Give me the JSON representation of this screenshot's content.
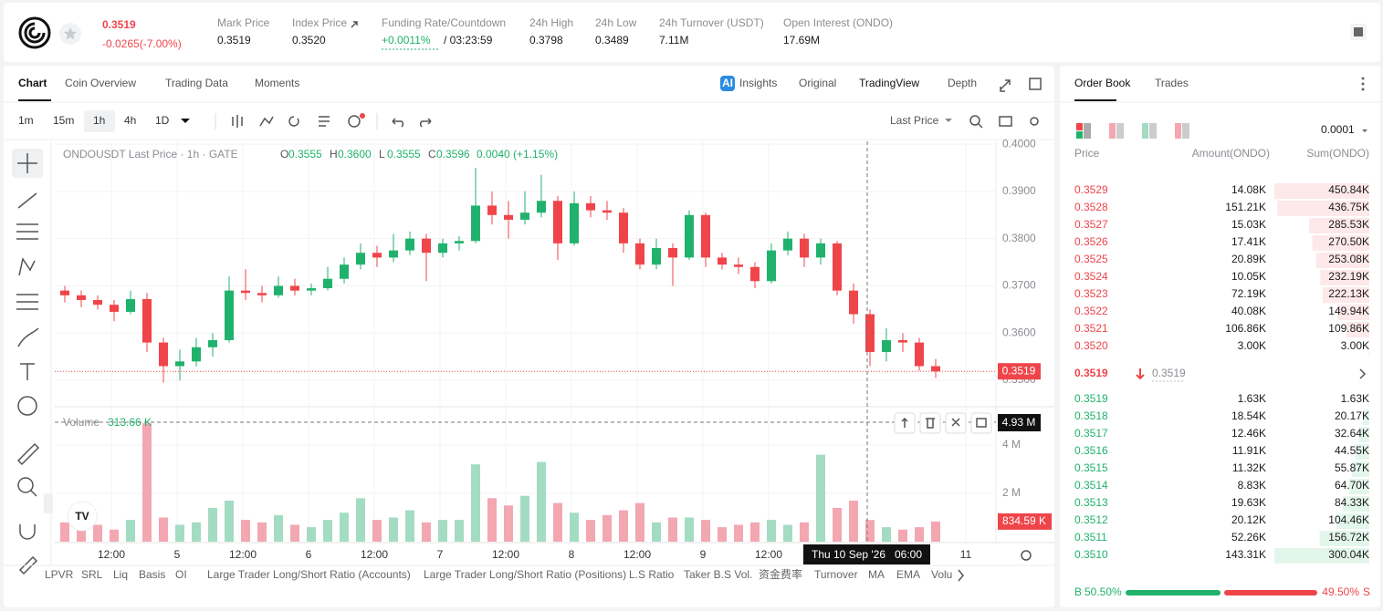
{
  "header": {
    "price": "0.3519",
    "change": "-0.0265(-7.00%)",
    "stats": [
      {
        "label": "Mark Price",
        "value": "0.3519"
      },
      {
        "label": "Index Price",
        "value": "0.3520"
      },
      {
        "label": "Funding Rate/Countdown",
        "value": "+0.0011%",
        "countdown": "/ 03:23:59"
      },
      {
        "label": "24h High",
        "value": "0.3798"
      },
      {
        "label": "24h Low",
        "value": "0.3489"
      },
      {
        "label": "24h Turnover (USDT)",
        "value": "7.11M"
      },
      {
        "label": "Open Interest (ONDO)",
        "value": "17.69M"
      }
    ]
  },
  "tabs": [
    "Chart",
    "Coin Overview",
    "Trading Data",
    "Moments"
  ],
  "view_tabs": [
    "Insights",
    "Original",
    "TradingView",
    "Depth"
  ],
  "intervals": [
    "1m",
    "15m",
    "1h",
    "4h",
    "1D"
  ],
  "price_source": "Last Price",
  "chart_data": {
    "type": "candlestick",
    "legend_title": "ONDOUSDT Last Price · 1h · GATE",
    "ohlc_legend": [
      {
        "key": "O",
        "value": "0.3555"
      },
      {
        "key": "H",
        "value": "0.3600"
      },
      {
        "key": "L",
        "value": "0.3555"
      },
      {
        "key": "C",
        "value": "0.3596"
      }
    ],
    "legend_change": "0.0040 (+1.15%)",
    "colors": {
      "up": "#20b26c",
      "down": "#ef454a",
      "up_volume": "#a3dcc3",
      "down_volume": "#f3a7b1"
    },
    "candles": [
      [
        0.369,
        0.37,
        0.3665,
        0.368
      ],
      [
        0.368,
        0.369,
        0.3655,
        0.367
      ],
      [
        0.367,
        0.368,
        0.365,
        0.366
      ],
      [
        0.366,
        0.367,
        0.3625,
        0.3645
      ],
      [
        0.3645,
        0.369,
        0.364,
        0.3672
      ],
      [
        0.3672,
        0.3685,
        0.356,
        0.358
      ],
      [
        0.358,
        0.359,
        0.3495,
        0.353
      ],
      [
        0.353,
        0.3565,
        0.35,
        0.354
      ],
      [
        0.354,
        0.359,
        0.353,
        0.357
      ],
      [
        0.357,
        0.36,
        0.355,
        0.3585
      ],
      [
        0.3585,
        0.372,
        0.358,
        0.369
      ],
      [
        0.369,
        0.3735,
        0.367,
        0.3685
      ],
      [
        0.3685,
        0.37,
        0.3665,
        0.368
      ],
      [
        0.368,
        0.372,
        0.3675,
        0.37
      ],
      [
        0.37,
        0.3715,
        0.368,
        0.369
      ],
      [
        0.369,
        0.3705,
        0.368,
        0.3695
      ],
      [
        0.3695,
        0.374,
        0.369,
        0.3715
      ],
      [
        0.3715,
        0.376,
        0.3705,
        0.3745
      ],
      [
        0.3745,
        0.379,
        0.3735,
        0.377
      ],
      [
        0.377,
        0.3785,
        0.374,
        0.376
      ],
      [
        0.376,
        0.381,
        0.375,
        0.3775
      ],
      [
        0.3775,
        0.3815,
        0.3765,
        0.38
      ],
      [
        0.38,
        0.381,
        0.371,
        0.377
      ],
      [
        0.377,
        0.38,
        0.376,
        0.379
      ],
      [
        0.379,
        0.3805,
        0.3775,
        0.3795
      ],
      [
        0.3795,
        0.395,
        0.379,
        0.387
      ],
      [
        0.387,
        0.39,
        0.383,
        0.385
      ],
      [
        0.385,
        0.388,
        0.38,
        0.384
      ],
      [
        0.384,
        0.39,
        0.383,
        0.3855
      ],
      [
        0.3855,
        0.3935,
        0.3845,
        0.388
      ],
      [
        0.388,
        0.389,
        0.3755,
        0.379
      ],
      [
        0.379,
        0.39,
        0.3785,
        0.3875
      ],
      [
        0.3875,
        0.389,
        0.3845,
        0.386
      ],
      [
        0.386,
        0.388,
        0.384,
        0.3855
      ],
      [
        0.3855,
        0.3865,
        0.377,
        0.379
      ],
      [
        0.379,
        0.38,
        0.3735,
        0.3745
      ],
      [
        0.3745,
        0.38,
        0.3735,
        0.378
      ],
      [
        0.378,
        0.379,
        0.37,
        0.376
      ],
      [
        0.376,
        0.386,
        0.3755,
        0.385
      ],
      [
        0.385,
        0.3855,
        0.374,
        0.376
      ],
      [
        0.376,
        0.377,
        0.3735,
        0.3745
      ],
      [
        0.3745,
        0.376,
        0.3725,
        0.374
      ],
      [
        0.374,
        0.375,
        0.3695,
        0.371
      ],
      [
        0.371,
        0.379,
        0.3705,
        0.3775
      ],
      [
        0.3775,
        0.3815,
        0.3765,
        0.38
      ],
      [
        0.38,
        0.381,
        0.374,
        0.376
      ],
      [
        0.376,
        0.38,
        0.3745,
        0.379
      ],
      [
        0.379,
        0.3795,
        0.368,
        0.369
      ],
      [
        0.369,
        0.3705,
        0.362,
        0.364
      ],
      [
        0.364,
        0.365,
        0.353,
        0.356
      ],
      [
        0.356,
        0.361,
        0.354,
        0.3585
      ],
      [
        0.3585,
        0.36,
        0.356,
        0.358
      ],
      [
        0.358,
        0.359,
        0.352,
        0.353
      ],
      [
        0.353,
        0.3545,
        0.3505,
        0.3519
      ]
    ],
    "ylim": [
      0.3446,
      0.4006
    ],
    "yticks": [
      {
        "value": 0.35,
        "label": "0.3500"
      },
      {
        "value": 0.36,
        "label": "0.3600"
      },
      {
        "value": 0.37,
        "label": "0.3700"
      },
      {
        "value": 0.38,
        "label": "0.3800"
      },
      {
        "value": 0.39,
        "label": "0.3900"
      },
      {
        "value": 0.4,
        "label": "0.4000"
      }
    ],
    "last_price_label": "0.3519",
    "xlim": [
      -0.111,
      57.111
    ],
    "xticks": [
      {
        "value": 3.333,
        "label": "12:00"
      },
      {
        "value": 7.333,
        "label": "5"
      },
      {
        "value": 11.333,
        "label": "12:00"
      },
      {
        "value": 15.333,
        "label": "6"
      },
      {
        "value": 19.333,
        "label": "12:00"
      },
      {
        "value": 23.333,
        "label": "7"
      },
      {
        "value": 27.333,
        "label": "12:00"
      },
      {
        "value": 31.333,
        "label": "8"
      },
      {
        "value": 35.333,
        "label": "12:00"
      },
      {
        "value": 39.333,
        "label": "9"
      },
      {
        "value": 43.333,
        "label": "12:00"
      },
      {
        "value": 55.333,
        "label": "11"
      }
    ],
    "crosshair": {
      "date": "Thu 10 Sep '26",
      "time": "06:00",
      "volume_label": "4.93 M"
    },
    "volume": {
      "label": "Volume",
      "legend_value": "313.66 K",
      "values": [
        0.8,
        0.6,
        0.7,
        0.5,
        0.9,
        4.9,
        1.0,
        0.7,
        0.8,
        1.4,
        1.7,
        0.9,
        0.8,
        1.1,
        0.7,
        0.6,
        0.9,
        1.2,
        1.8,
        0.9,
        1.0,
        1.3,
        0.8,
        0.9,
        0.9,
        3.2,
        1.8,
        1.5,
        1.9,
        3.3,
        1.6,
        1.2,
        0.9,
        1.1,
        1.3,
        1.6,
        0.8,
        1.0,
        1.0,
        0.9,
        0.6,
        0.7,
        0.8,
        0.9,
        0.7,
        0.8,
        3.6,
        1.4,
        1.7,
        0.9,
        0.6,
        0.5,
        0.6,
        0.83459
      ],
      "last_value_label": "834.59 K",
      "ylim": [
        0,
        5.51
      ],
      "yticks": [
        {
          "value": 2,
          "label": "2 M"
        },
        {
          "value": 4,
          "label": "4 M"
        }
      ]
    }
  },
  "indicators": [
    "LPVR",
    "SRL",
    "Liq",
    "Basis",
    "OI",
    "Large Trader Long/Short Ratio (Accounts)",
    "Large Trader Long/Short Ratio (Positions)",
    "L.S Ratio",
    "Taker B.S Vol.",
    "资金费率",
    "Turnover",
    "MA",
    "EMA",
    "Volu"
  ],
  "order_book": {
    "tabs": [
      "Order Book",
      "Trades"
    ],
    "precision": "0.0001",
    "headers": [
      "Price",
      "Amount(ONDO)",
      "Sum(ONDO)"
    ],
    "asks": {
      "prices": [
        "0.3529",
        "0.3528",
        "0.3527",
        "0.3526",
        "0.3525",
        "0.3524",
        "0.3523",
        "0.3522",
        "0.3521",
        "0.3520"
      ],
      "amounts": [
        "14.08K",
        "151.21K",
        "15.03K",
        "17.41K",
        "20.89K",
        "10.05K",
        "72.19K",
        "40.08K",
        "106.86K",
        "3.00K"
      ],
      "sums": [
        450.84,
        436.75,
        285.53,
        270.5,
        253.08,
        232.19,
        222.13,
        149.94,
        109.86,
        3.0
      ],
      "sum_labels": [
        "450.84K",
        "436.75K",
        "285.53K",
        "270.50K",
        "253.08K",
        "232.19K",
        "222.13K",
        "149.94K",
        "109.86K",
        "3.00K"
      ]
    },
    "mid_price": "0.3519",
    "mark_price": "0.3519",
    "bids": {
      "prices": [
        "0.3519",
        "0.3518",
        "0.3517",
        "0.3516",
        "0.3515",
        "0.3514",
        "0.3513",
        "0.3512",
        "0.3511",
        "0.3510"
      ],
      "amounts": [
        "1.63K",
        "18.54K",
        "12.46K",
        "11.91K",
        "11.32K",
        "8.83K",
        "19.63K",
        "20.12K",
        "52.26K",
        "143.31K"
      ],
      "sums": [
        1.63,
        20.17,
        32.64,
        44.55,
        55.87,
        64.7,
        84.33,
        104.46,
        156.72,
        300.04
      ],
      "sum_labels": [
        "1.63K",
        "20.17K",
        "32.64K",
        "44.55K",
        "55.87K",
        "64.70K",
        "84.33K",
        "104.46K",
        "156.72K",
        "300.04K"
      ]
    },
    "ratio": {
      "buy_key": "B",
      "buy": 50.5,
      "buy_label": "50.50%",
      "sell": 49.5,
      "sell_label": "49.50%",
      "sell_key": "S"
    }
  }
}
